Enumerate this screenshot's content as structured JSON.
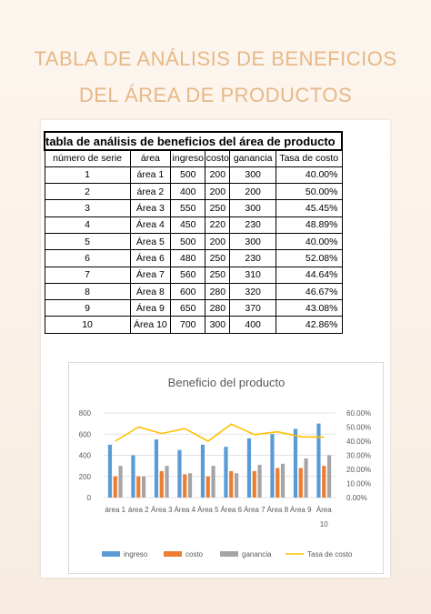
{
  "page": {
    "title_line1": "TABLA DE ANÁLISIS DE BENEFICIOS",
    "title_line2": "DEL ÁREA DE PRODUCTOS"
  },
  "table": {
    "caption": "tabla de análisis de beneficios del área de producto",
    "headers": [
      "número de serie",
      "área",
      "ingreso",
      "costo",
      "ganancia",
      "Tasa de costo"
    ],
    "rows": [
      [
        "1",
        "área 1",
        "500",
        "200",
        "300",
        "40.00%"
      ],
      [
        "2",
        "área 2",
        "400",
        "200",
        "200",
        "50.00%"
      ],
      [
        "3",
        "Área 3",
        "550",
        "250",
        "300",
        "45.45%"
      ],
      [
        "4",
        "Área 4",
        "450",
        "220",
        "230",
        "48.89%"
      ],
      [
        "5",
        "Área 5",
        "500",
        "200",
        "300",
        "40.00%"
      ],
      [
        "6",
        "Área 6",
        "480",
        "250",
        "230",
        "52.08%"
      ],
      [
        "7",
        "Área 7",
        "560",
        "250",
        "310",
        "44.64%"
      ],
      [
        "8",
        "Área 8",
        "600",
        "280",
        "320",
        "46.67%"
      ],
      [
        "9",
        "Área 9",
        "650",
        "280",
        "370",
        "43.08%"
      ],
      [
        "10",
        "Área 10",
        "700",
        "300",
        "400",
        "42.86%"
      ]
    ]
  },
  "chart_data": {
    "type": "bar",
    "title": "Beneficio del producto",
    "categories": [
      "área 1",
      "área 2",
      "Área 3",
      "Área 4",
      "Área 5",
      "Área 6",
      "Área 7",
      "Área 8",
      "Área 9",
      "Área 10"
    ],
    "ylim": [
      0,
      800
    ],
    "yticks": [
      "0",
      "200",
      "400",
      "600",
      "800"
    ],
    "y2lim": [
      0,
      60
    ],
    "y2ticks": [
      "0.00%",
      "10.00%",
      "20.00%",
      "30.00%",
      "40.00%",
      "50.00%",
      "60.00%"
    ],
    "legend_position": "bottom",
    "series": [
      {
        "name": "ingreso",
        "type": "bar",
        "color": "#5b9bd5",
        "values": [
          500,
          400,
          550,
          450,
          500,
          480,
          560,
          600,
          650,
          700
        ]
      },
      {
        "name": "costo",
        "type": "bar",
        "color": "#ed7d31",
        "values": [
          200,
          200,
          250,
          220,
          200,
          250,
          250,
          280,
          280,
          300
        ]
      },
      {
        "name": "ganancia",
        "type": "bar",
        "color": "#a5a5a5",
        "values": [
          300,
          200,
          300,
          230,
          300,
          230,
          310,
          320,
          370,
          400
        ]
      },
      {
        "name": "Tasa de costo",
        "type": "line",
        "axis": "secondary",
        "color": "#ffc000",
        "values": [
          40.0,
          50.0,
          45.45,
          48.89,
          40.0,
          52.08,
          44.64,
          46.67,
          43.08,
          42.86
        ]
      }
    ]
  }
}
